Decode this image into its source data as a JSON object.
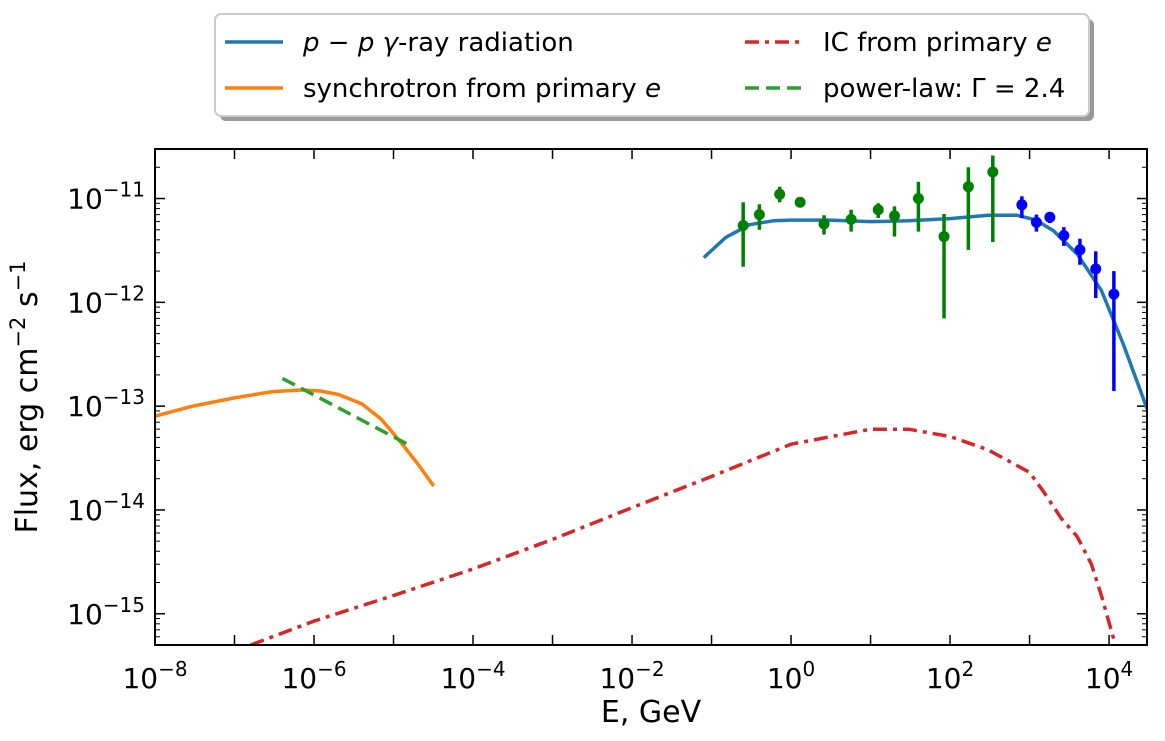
{
  "chart_data": {
    "type": "line",
    "xscale": "log",
    "yscale": "log",
    "xlabel": "E, GeV",
    "ylabel": "Flux, erg cm",
    "ylabel_exp_1": "−2",
    "ylabel_mid": " s",
    "ylabel_exp_2": "−1",
    "xlim": [
      1e-08,
      30000
    ],
    "ylim": [
      5e-16,
      3e-11
    ],
    "x_ticks": [
      {
        "value": 1e-08,
        "base": "10",
        "exp": "−8"
      },
      {
        "value": 1e-06,
        "base": "10",
        "exp": "−6"
      },
      {
        "value": 0.0001,
        "base": "10",
        "exp": "−4"
      },
      {
        "value": 0.01,
        "base": "10",
        "exp": "−2"
      },
      {
        "value": 1,
        "base": "10",
        "exp": "0"
      },
      {
        "value": 100,
        "base": "10",
        "exp": "2"
      },
      {
        "value": 10000,
        "base": "10",
        "exp": "4"
      }
    ],
    "y_ticks": [
      {
        "value": 1e-15,
        "base": "10",
        "exp": "−15"
      },
      {
        "value": 1e-14,
        "base": "10",
        "exp": "−14"
      },
      {
        "value": 1e-13,
        "base": "10",
        "exp": "−13"
      },
      {
        "value": 1e-12,
        "base": "10",
        "exp": "−12"
      },
      {
        "value": 1e-11,
        "base": "10",
        "exp": "−11"
      }
    ],
    "legend_position": "top-center-outside",
    "series": [
      {
        "name": "pp",
        "legend_parts": [
          {
            "t": "p",
            "italic": true
          },
          {
            "t": " − ",
            "italic": false
          },
          {
            "t": "p",
            "italic": true
          },
          {
            "t": " ",
            "italic": false
          },
          {
            "t": "γ",
            "italic": true
          },
          {
            "t": "-ray radiation",
            "italic": false
          }
        ],
        "color": "#1f77b4",
        "dash": "solid",
        "x": [
          0.08,
          0.15,
          0.3,
          0.6,
          1,
          3,
          10,
          30,
          100,
          300,
          700,
          1200,
          2000,
          4000,
          8000,
          15000,
          30000
        ],
        "y": [
          2.7e-12,
          4.2e-12,
          5.6e-12,
          6.1e-12,
          6.2e-12,
          6.2e-12,
          6e-12,
          6.1e-12,
          6.4e-12,
          6.9e-12,
          6.9e-12,
          6.2e-12,
          4.9e-12,
          2.9e-12,
          1.3e-12,
          4e-13,
          9.5e-14
        ]
      },
      {
        "name": "synchrotron",
        "legend_parts": [
          {
            "t": "synchrotron from primary ",
            "italic": false
          },
          {
            "t": "e",
            "italic": true
          }
        ],
        "color": "#ff7f0e",
        "dash": "solid",
        "x": [
          1e-08,
          3e-08,
          1e-07,
          3e-07,
          7e-07,
          1.2e-06,
          2e-06,
          4e-06,
          7e-06,
          1.2e-05,
          2e-05,
          3.2e-05
        ],
        "y": [
          8e-14,
          1e-13,
          1.2e-13,
          1.38e-13,
          1.43e-13,
          1.4e-13,
          1.3e-13,
          1.05e-13,
          7.5e-14,
          4.6e-14,
          2.8e-14,
          1.7e-14
        ]
      },
      {
        "name": "ic",
        "legend_parts": [
          {
            "t": "IC from primary ",
            "italic": false
          },
          {
            "t": "e",
            "italic": true
          }
        ],
        "color": "#d62728",
        "dash": "dashdot",
        "x": [
          1.6e-07,
          1e-06,
          1e-05,
          0.0001,
          0.001,
          0.01,
          0.1,
          1,
          10,
          30,
          100,
          300,
          1000,
          1500,
          2500,
          4000,
          6000,
          8000,
          12000
        ],
        "y": [
          5e-16,
          8.5e-16,
          1.5e-15,
          2.7e-15,
          5.2e-15,
          1.05e-14,
          2.1e-14,
          4.3e-14,
          6e-14,
          6e-14,
          5.1e-14,
          3.8e-14,
          2.3e-14,
          1.5e-14,
          8.3e-15,
          5.5e-15,
          3e-15,
          1.5e-15,
          5e-16
        ]
      },
      {
        "name": "powerlaw",
        "legend_parts": [
          {
            "t": "power-law: Γ = 2.4",
            "italic": false
          }
        ],
        "color": "#2ca02c",
        "dash": "dashed",
        "x": [
          4e-07,
          1.5e-05
        ],
        "y": [
          1.85e-13,
          4.3e-14
        ]
      }
    ],
    "data_points": [
      {
        "name": "green",
        "color": "#008000",
        "points": [
          {
            "x": 0.25,
            "y": 5.5e-12,
            "lo": 2.2e-12,
            "hi": 9.2e-12
          },
          {
            "x": 0.4,
            "y": 7e-12,
            "lo": 5e-12,
            "hi": 8.8e-12
          },
          {
            "x": 0.72,
            "y": 1.1e-11,
            "lo": 9.2e-12,
            "hi": 1.3e-11
          },
          {
            "x": 1.3,
            "y": 9.2e-12,
            "lo": 8.2e-12,
            "hi": 1e-11
          },
          {
            "x": 2.6,
            "y": 5.7e-12,
            "lo": 4.5e-12,
            "hi": 6.9e-12
          },
          {
            "x": 5.7,
            "y": 6.3e-12,
            "lo": 4.8e-12,
            "hi": 7.8e-12
          },
          {
            "x": 12.5,
            "y": 7.8e-12,
            "lo": 6.5e-12,
            "hi": 9e-12
          },
          {
            "x": 20,
            "y": 6.8e-12,
            "lo": 4.3e-12,
            "hi": 8.4e-12
          },
          {
            "x": 40,
            "y": 1e-11,
            "lo": 4.8e-12,
            "hi": 1.45e-11
          },
          {
            "x": 84,
            "y": 4.3e-12,
            "lo": 7e-13,
            "hi": 7.1e-12
          },
          {
            "x": 170,
            "y": 1.3e-11,
            "lo": 3.2e-12,
            "hi": 2e-11
          },
          {
            "x": 345,
            "y": 1.8e-11,
            "lo": 3.8e-12,
            "hi": 2.6e-11
          }
        ]
      },
      {
        "name": "blue",
        "color": "#0000ff",
        "points": [
          {
            "x": 800,
            "y": 8.7e-12,
            "lo": 6.5e-12,
            "hi": 1.05e-11
          },
          {
            "x": 1220,
            "y": 5.9e-12,
            "lo": 4.8e-12,
            "hi": 7e-12
          },
          {
            "x": 1800,
            "y": 6.6e-12,
            "lo": 5.8e-12,
            "hi": 7.4e-12
          },
          {
            "x": 2700,
            "y": 4.4e-12,
            "lo": 3.5e-12,
            "hi": 5.3e-12
          },
          {
            "x": 4300,
            "y": 3.2e-12,
            "lo": 2.3e-12,
            "hi": 4.1e-12
          },
          {
            "x": 6800,
            "y": 2.1e-12,
            "lo": 1.1e-12,
            "hi": 3.1e-12
          },
          {
            "x": 11500,
            "y": 1.2e-12,
            "lo": 1.4e-13,
            "hi": 2e-12
          }
        ]
      }
    ]
  }
}
